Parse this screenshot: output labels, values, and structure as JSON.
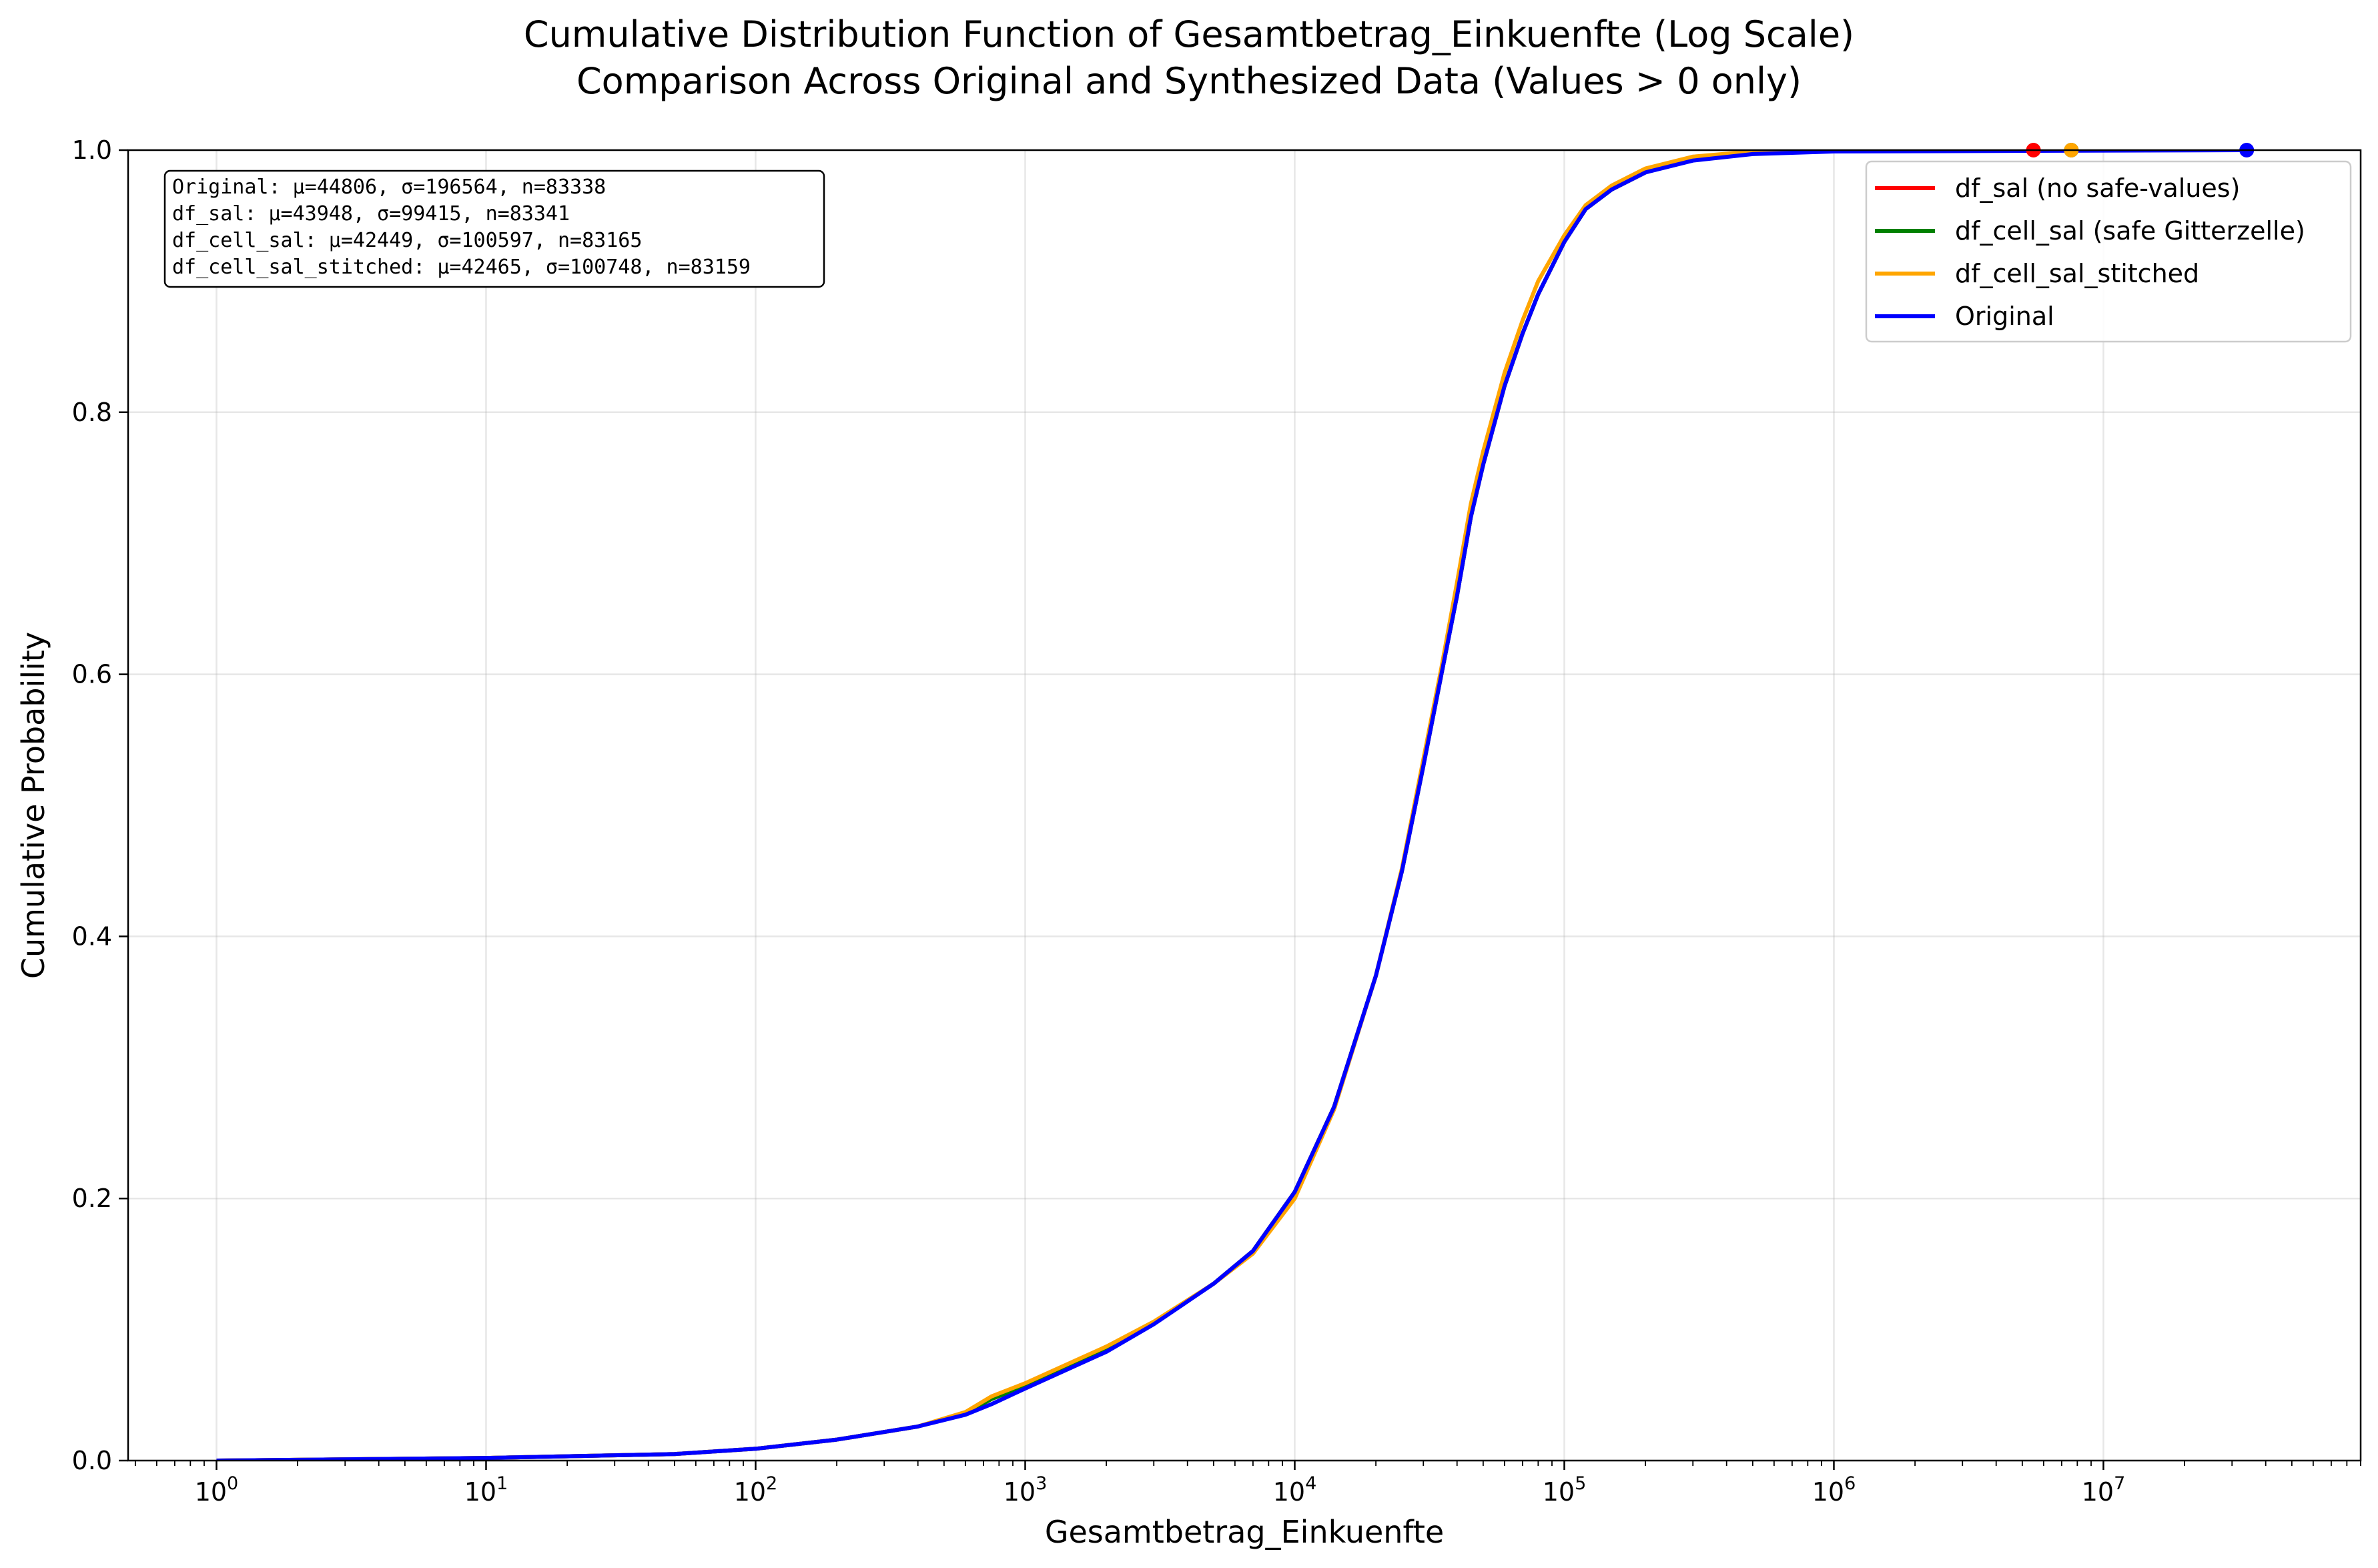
{
  "chart_data": {
    "type": "line",
    "title": "Cumulative Distribution Function of Gesamtbetrag_Einkuenfte (Log Scale)",
    "subtitle": "Comparison Across Original and Synthesized Data (Values > 0 only)",
    "xlabel": "Gesamtbetrag_Einkuenfte",
    "ylabel": "Cumulative Probability",
    "x_scale": "log",
    "xlim": [
      0.47,
      90000000
    ],
    "ylim": [
      0,
      1
    ],
    "grid": true,
    "legend_position": "top-right",
    "x_ticks": [
      {
        "value": 1,
        "base": "10",
        "exp": "0"
      },
      {
        "value": 10,
        "base": "10",
        "exp": "1"
      },
      {
        "value": 100,
        "base": "10",
        "exp": "2"
      },
      {
        "value": 1000,
        "base": "10",
        "exp": "3"
      },
      {
        "value": 10000,
        "base": "10",
        "exp": "4"
      },
      {
        "value": 100000,
        "base": "10",
        "exp": "5"
      },
      {
        "value": 1000000,
        "base": "10",
        "exp": "6"
      },
      {
        "value": 10000000,
        "base": "10",
        "exp": "7"
      }
    ],
    "y_ticks": [
      {
        "value": 0.0,
        "label": "0.0"
      },
      {
        "value": 0.2,
        "label": "0.2"
      },
      {
        "value": 0.4,
        "label": "0.4"
      },
      {
        "value": 0.6,
        "label": "0.6"
      },
      {
        "value": 0.8,
        "label": "0.8"
      },
      {
        "value": 1.0,
        "label": "1.0"
      }
    ],
    "stats": [
      "Original: μ=44806, σ=196564, n=83338",
      "df_sal: μ=43948, σ=99415, n=83341",
      "df_cell_sal: μ=42449, σ=100597, n=83165",
      "df_cell_sal_stitched: μ=42465, σ=100748, n=83159"
    ],
    "series": [
      {
        "name": "df_sal (no safe-values)",
        "color": "#ff0000",
        "points": [
          [
            1,
            0
          ],
          [
            10,
            0.002
          ],
          [
            50,
            0.005
          ],
          [
            100,
            0.009
          ],
          [
            200,
            0.016
          ],
          [
            400,
            0.026
          ],
          [
            600,
            0.036
          ],
          [
            750,
            0.047
          ],
          [
            1000,
            0.057
          ],
          [
            2000,
            0.085
          ],
          [
            3000,
            0.105
          ],
          [
            5000,
            0.135
          ],
          [
            7000,
            0.16
          ],
          [
            10000,
            0.205
          ],
          [
            14000,
            0.27
          ],
          [
            20000,
            0.37
          ],
          [
            25000,
            0.45
          ],
          [
            30000,
            0.53
          ],
          [
            35000,
            0.6
          ],
          [
            40000,
            0.66
          ],
          [
            45000,
            0.72
          ],
          [
            50000,
            0.76
          ],
          [
            60000,
            0.82
          ],
          [
            70000,
            0.86
          ],
          [
            80000,
            0.89
          ],
          [
            100000,
            0.93
          ],
          [
            120000,
            0.955
          ],
          [
            150000,
            0.97
          ],
          [
            200000,
            0.983
          ],
          [
            300000,
            0.993
          ],
          [
            500000,
            0.998
          ],
          [
            1000000,
            0.9995
          ],
          [
            5500000,
            1
          ]
        ],
        "max_value": 5500000
      },
      {
        "name": "df_cell_sal (safe Gitterzelle)",
        "color": "#008000",
        "points": [
          [
            1,
            0
          ],
          [
            10,
            0.002
          ],
          [
            50,
            0.005
          ],
          [
            100,
            0.009
          ],
          [
            200,
            0.016
          ],
          [
            400,
            0.026
          ],
          [
            600,
            0.036
          ],
          [
            750,
            0.047
          ],
          [
            1000,
            0.057
          ],
          [
            2000,
            0.085
          ],
          [
            3000,
            0.105
          ],
          [
            5000,
            0.135
          ],
          [
            7000,
            0.16
          ],
          [
            10000,
            0.205
          ],
          [
            14000,
            0.27
          ],
          [
            20000,
            0.37
          ],
          [
            25000,
            0.45
          ],
          [
            30000,
            0.53
          ],
          [
            35000,
            0.6
          ],
          [
            40000,
            0.66
          ],
          [
            45000,
            0.72
          ],
          [
            50000,
            0.76
          ],
          [
            60000,
            0.82
          ],
          [
            70000,
            0.86
          ],
          [
            80000,
            0.89
          ],
          [
            100000,
            0.93
          ],
          [
            120000,
            0.955
          ],
          [
            150000,
            0.97
          ],
          [
            200000,
            0.983
          ],
          [
            300000,
            0.993
          ],
          [
            500000,
            0.998
          ],
          [
            1000000,
            0.9995
          ],
          [
            7600000,
            1
          ]
        ],
        "max_value": 7600000
      },
      {
        "name": "df_cell_sal_stitched",
        "color": "#ffa500",
        "points": [
          [
            1,
            0
          ],
          [
            10,
            0.002
          ],
          [
            50,
            0.005
          ],
          [
            100,
            0.009
          ],
          [
            200,
            0.016
          ],
          [
            400,
            0.026
          ],
          [
            600,
            0.037
          ],
          [
            750,
            0.049
          ],
          [
            1000,
            0.059
          ],
          [
            2000,
            0.087
          ],
          [
            3000,
            0.106
          ],
          [
            5000,
            0.135
          ],
          [
            7000,
            0.158
          ],
          [
            10000,
            0.2
          ],
          [
            14000,
            0.268
          ],
          [
            20000,
            0.37
          ],
          [
            25000,
            0.452
          ],
          [
            30000,
            0.535
          ],
          [
            35000,
            0.605
          ],
          [
            40000,
            0.67
          ],
          [
            45000,
            0.73
          ],
          [
            50000,
            0.77
          ],
          [
            60000,
            0.83
          ],
          [
            70000,
            0.87
          ],
          [
            80000,
            0.9
          ],
          [
            100000,
            0.935
          ],
          [
            120000,
            0.958
          ],
          [
            150000,
            0.973
          ],
          [
            200000,
            0.986
          ],
          [
            300000,
            0.995
          ],
          [
            500000,
            0.999
          ],
          [
            1000000,
            0.9997
          ],
          [
            7600000,
            1
          ]
        ],
        "max_value": 7600000
      },
      {
        "name": "Original",
        "color": "#0000ff",
        "points": [
          [
            1,
            0
          ],
          [
            10,
            0.002
          ],
          [
            50,
            0.005
          ],
          [
            100,
            0.009
          ],
          [
            200,
            0.016
          ],
          [
            400,
            0.026
          ],
          [
            600,
            0.035
          ],
          [
            750,
            0.043
          ],
          [
            1000,
            0.055
          ],
          [
            2000,
            0.083
          ],
          [
            3000,
            0.104
          ],
          [
            5000,
            0.135
          ],
          [
            7000,
            0.16
          ],
          [
            10000,
            0.205
          ],
          [
            14000,
            0.27
          ],
          [
            20000,
            0.37
          ],
          [
            25000,
            0.45
          ],
          [
            30000,
            0.53
          ],
          [
            35000,
            0.6
          ],
          [
            40000,
            0.66
          ],
          [
            45000,
            0.72
          ],
          [
            50000,
            0.76
          ],
          [
            60000,
            0.82
          ],
          [
            70000,
            0.86
          ],
          [
            80000,
            0.89
          ],
          [
            100000,
            0.93
          ],
          [
            120000,
            0.955
          ],
          [
            150000,
            0.97
          ],
          [
            200000,
            0.983
          ],
          [
            300000,
            0.992
          ],
          [
            500000,
            0.997
          ],
          [
            1000000,
            0.999
          ],
          [
            34000000,
            1
          ]
        ],
        "max_value": 34000000
      }
    ]
  }
}
